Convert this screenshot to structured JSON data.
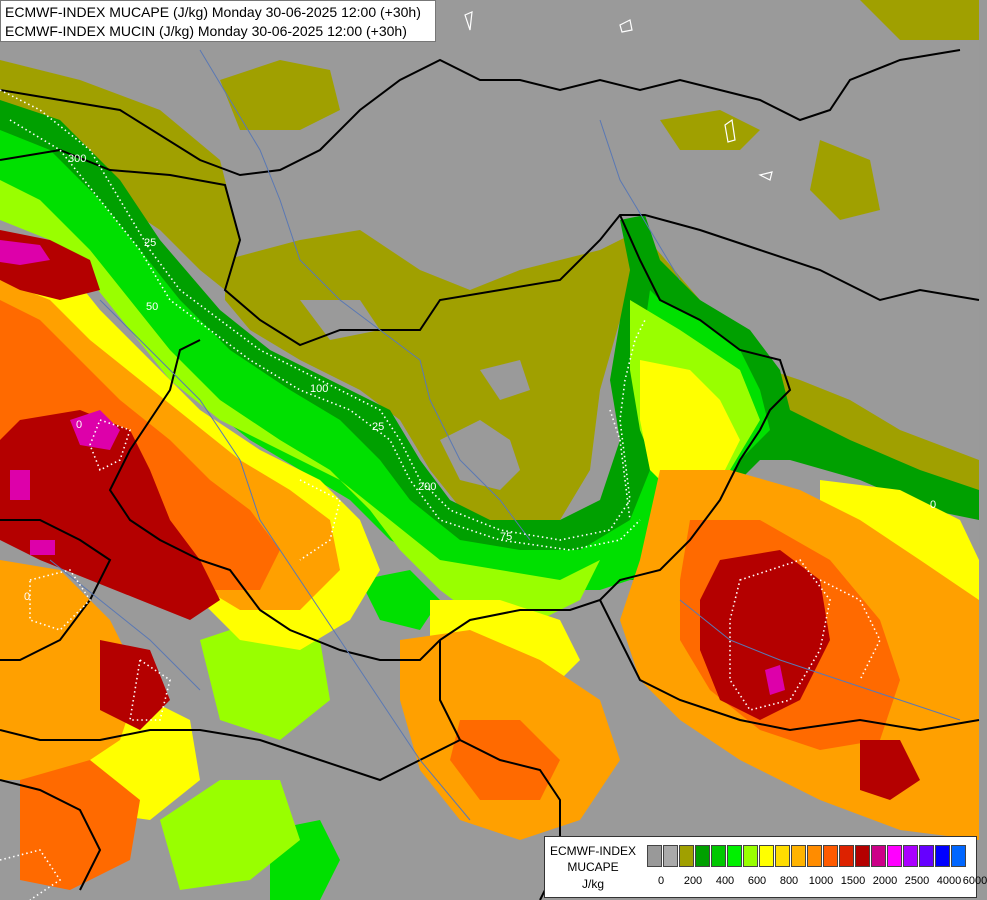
{
  "header": {
    "line1": "ECMWF-INDEX MUCAPE (J/kg) Monday 30-06-2025 12:00 (+30h)",
    "line2": "ECMWF-INDEX MUCIN (J/kg) Monday 30-06-2025 12:00 (+30h)"
  },
  "legend": {
    "title_line1": "ECMWF-INDEX",
    "title_line2": "MUCAPE",
    "unit": "J/kg",
    "colors": [
      "#999999",
      "#aaaaaa",
      "#a0a000",
      "#00a000",
      "#00c800",
      "#00f000",
      "#99ff00",
      "#ffff00",
      "#ffdd00",
      "#ffb300",
      "#ff8c00",
      "#ff5a00",
      "#dd2200",
      "#b40000",
      "#cc0088",
      "#ff00ff",
      "#aa00ff",
      "#6600ff",
      "#0000ff",
      "#0066ff",
      "#00aaff",
      "#00e6ff",
      "#ccffff"
    ],
    "tick_labels": [
      "0",
      "200",
      "400",
      "600",
      "800",
      "1000",
      "1500",
      "2000",
      "2500",
      "4000",
      "6000"
    ]
  },
  "map": {
    "cin_contour_labels": [
      "300",
      "25",
      "50",
      "100",
      "25",
      "200",
      "75",
      "0",
      "0",
      "0"
    ]
  }
}
